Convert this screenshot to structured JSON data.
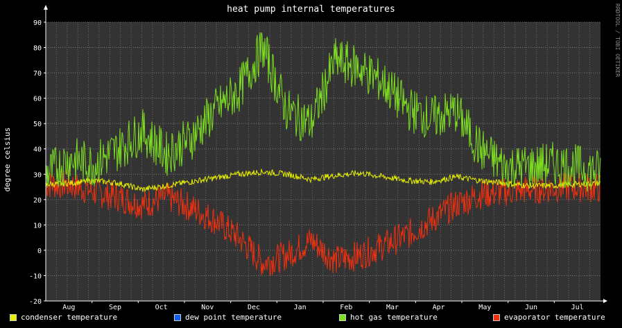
{
  "chart_data": {
    "type": "line",
    "title": "heat pump internal temperatures",
    "ylabel": "degree celsius",
    "watermark": "RRDTOOL / TOBI OETIKER",
    "ylim": [
      -20,
      90
    ],
    "yticks": [
      -20,
      -10,
      0,
      10,
      20,
      30,
      40,
      50,
      60,
      70,
      80,
      90
    ],
    "xticks": [
      "Aug",
      "Sep",
      "Oct",
      "Nov",
      "Dec",
      "Jan",
      "Feb",
      "Mar",
      "Apr",
      "May",
      "Jun",
      "Jul"
    ],
    "grid": true,
    "legend_position": "bottom",
    "series": [
      {
        "name": "condenser temperature",
        "color": "#e8f000",
        "values": [
          26,
          26.5,
          27.5,
          26.5,
          24,
          25.5,
          27,
          28.5,
          30,
          31,
          30,
          28,
          29.5,
          30.5,
          29,
          27.5,
          27,
          29,
          27.5,
          26.5,
          25.5,
          25.5,
          26,
          26.5
        ]
      },
      {
        "name": "dew point temperature",
        "color": "#1060f0",
        "values": []
      },
      {
        "name": "hot gas temperature",
        "color": "#7ee020",
        "values": [
          30,
          36,
          34,
          40,
          47,
          38,
          44,
          55,
          63,
          80,
          55,
          50,
          75,
          72,
          66,
          56,
          52,
          55,
          40,
          33,
          33,
          34,
          33,
          31
        ]
      },
      {
        "name": "evaporator temperature",
        "color": "#f03010",
        "values": [
          26,
          26,
          23,
          21,
          18,
          21,
          17,
          12,
          5,
          -5,
          -2,
          4,
          -4,
          -2,
          2,
          6,
          12,
          18,
          22,
          23,
          24,
          24.5,
          25,
          24.5
        ]
      }
    ]
  }
}
